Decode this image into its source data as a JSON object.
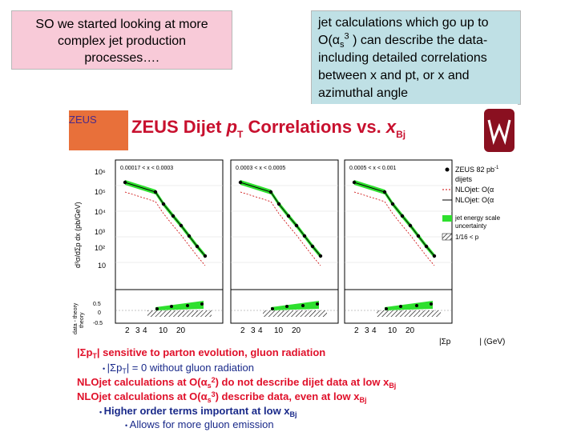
{
  "left_box": {
    "lines": [
      "SO we started looking at more",
      "complex jet production",
      "processes…."
    ]
  },
  "right_box": {
    "line1": "jet calculations which go up to",
    "line2_prefix": "O(α",
    "line2_sub": "s",
    "line2_sup": "3",
    "line2_suffix": " ) can describe the data-",
    "line3": "including detailed correlations",
    "line4": "between x and pt, or x and",
    "line5": "azimuthal angle"
  },
  "figure": {
    "logo_text": "ZEUS",
    "title_main": "ZEUS Dijet ",
    "title_p": "p",
    "title_T": "T",
    "title_mid": " Correlations vs. ",
    "title_x": "x",
    "title_Bj": "Bj",
    "y_axis_label": "d³σ/dΣp dx (pb/GeV)",
    "ratio_label_1": "data - theory",
    "ratio_label_2": "theory",
    "y_ticks": [
      "10⁶",
      "10⁵",
      "10⁴",
      "10³",
      "10²",
      "10"
    ],
    "x_ticks": [
      "2",
      "3",
      "4",
      "10",
      "20"
    ],
    "ratio_ticks": [
      "0.5",
      "0",
      "-0.5"
    ],
    "panel_labels": [
      "0.00017 < x",
      "0.0003 < x",
      "0.0005 < x"
    ],
    "panel_labels_right": [
      "< 0.0003",
      "< 0.0005",
      "< 0.001"
    ],
    "legend": {
      "data": "ZEUS 82 pb",
      "data_sup": "-1",
      "data_sub": "dijets",
      "nlo_3": "NLOjet: O(α",
      "nlo_3_tail": "s",
      "nlo_2": "NLOjet: O(α",
      "band_1": "jet energy scale",
      "band_2": "uncertainty",
      "hatch": "1/16 < p"
    },
    "x_axis_label": "|Σp",
    "x_axis_label_tail": "| (GeV)"
  },
  "bullets": {
    "b1": "|Σp",
    "b1_T": "T",
    "b1_rest": "| sensitive to parton evolution, gluon radiation",
    "b2_prefix": "|Σp",
    "b2_T": "T",
    "b2_rest": "| = 0 without gluon radiation",
    "b3_prefix": "NLOjet calculations at O(α",
    "b3_s": "s",
    "b3_sup": "2",
    "b3_rest": ") do not describe dijet data at low x",
    "b3_Bj": "Bj",
    "b4_prefix": "NLOjet calculations at O(α",
    "b4_s": "s",
    "b4_sup": "3",
    "b4_rest": ") describe data, even at low x",
    "b4_Bj": "Bj",
    "b5": "Higher order terms important at low x",
    "b5_Bj": "Bj",
    "b6": "Allows for more gluon emission"
  },
  "colors": {
    "title_red": "#c8102e",
    "text_red": "#e0102a",
    "bullet_blue": "#1a2a8a",
    "green_band": "#2ee02e"
  }
}
